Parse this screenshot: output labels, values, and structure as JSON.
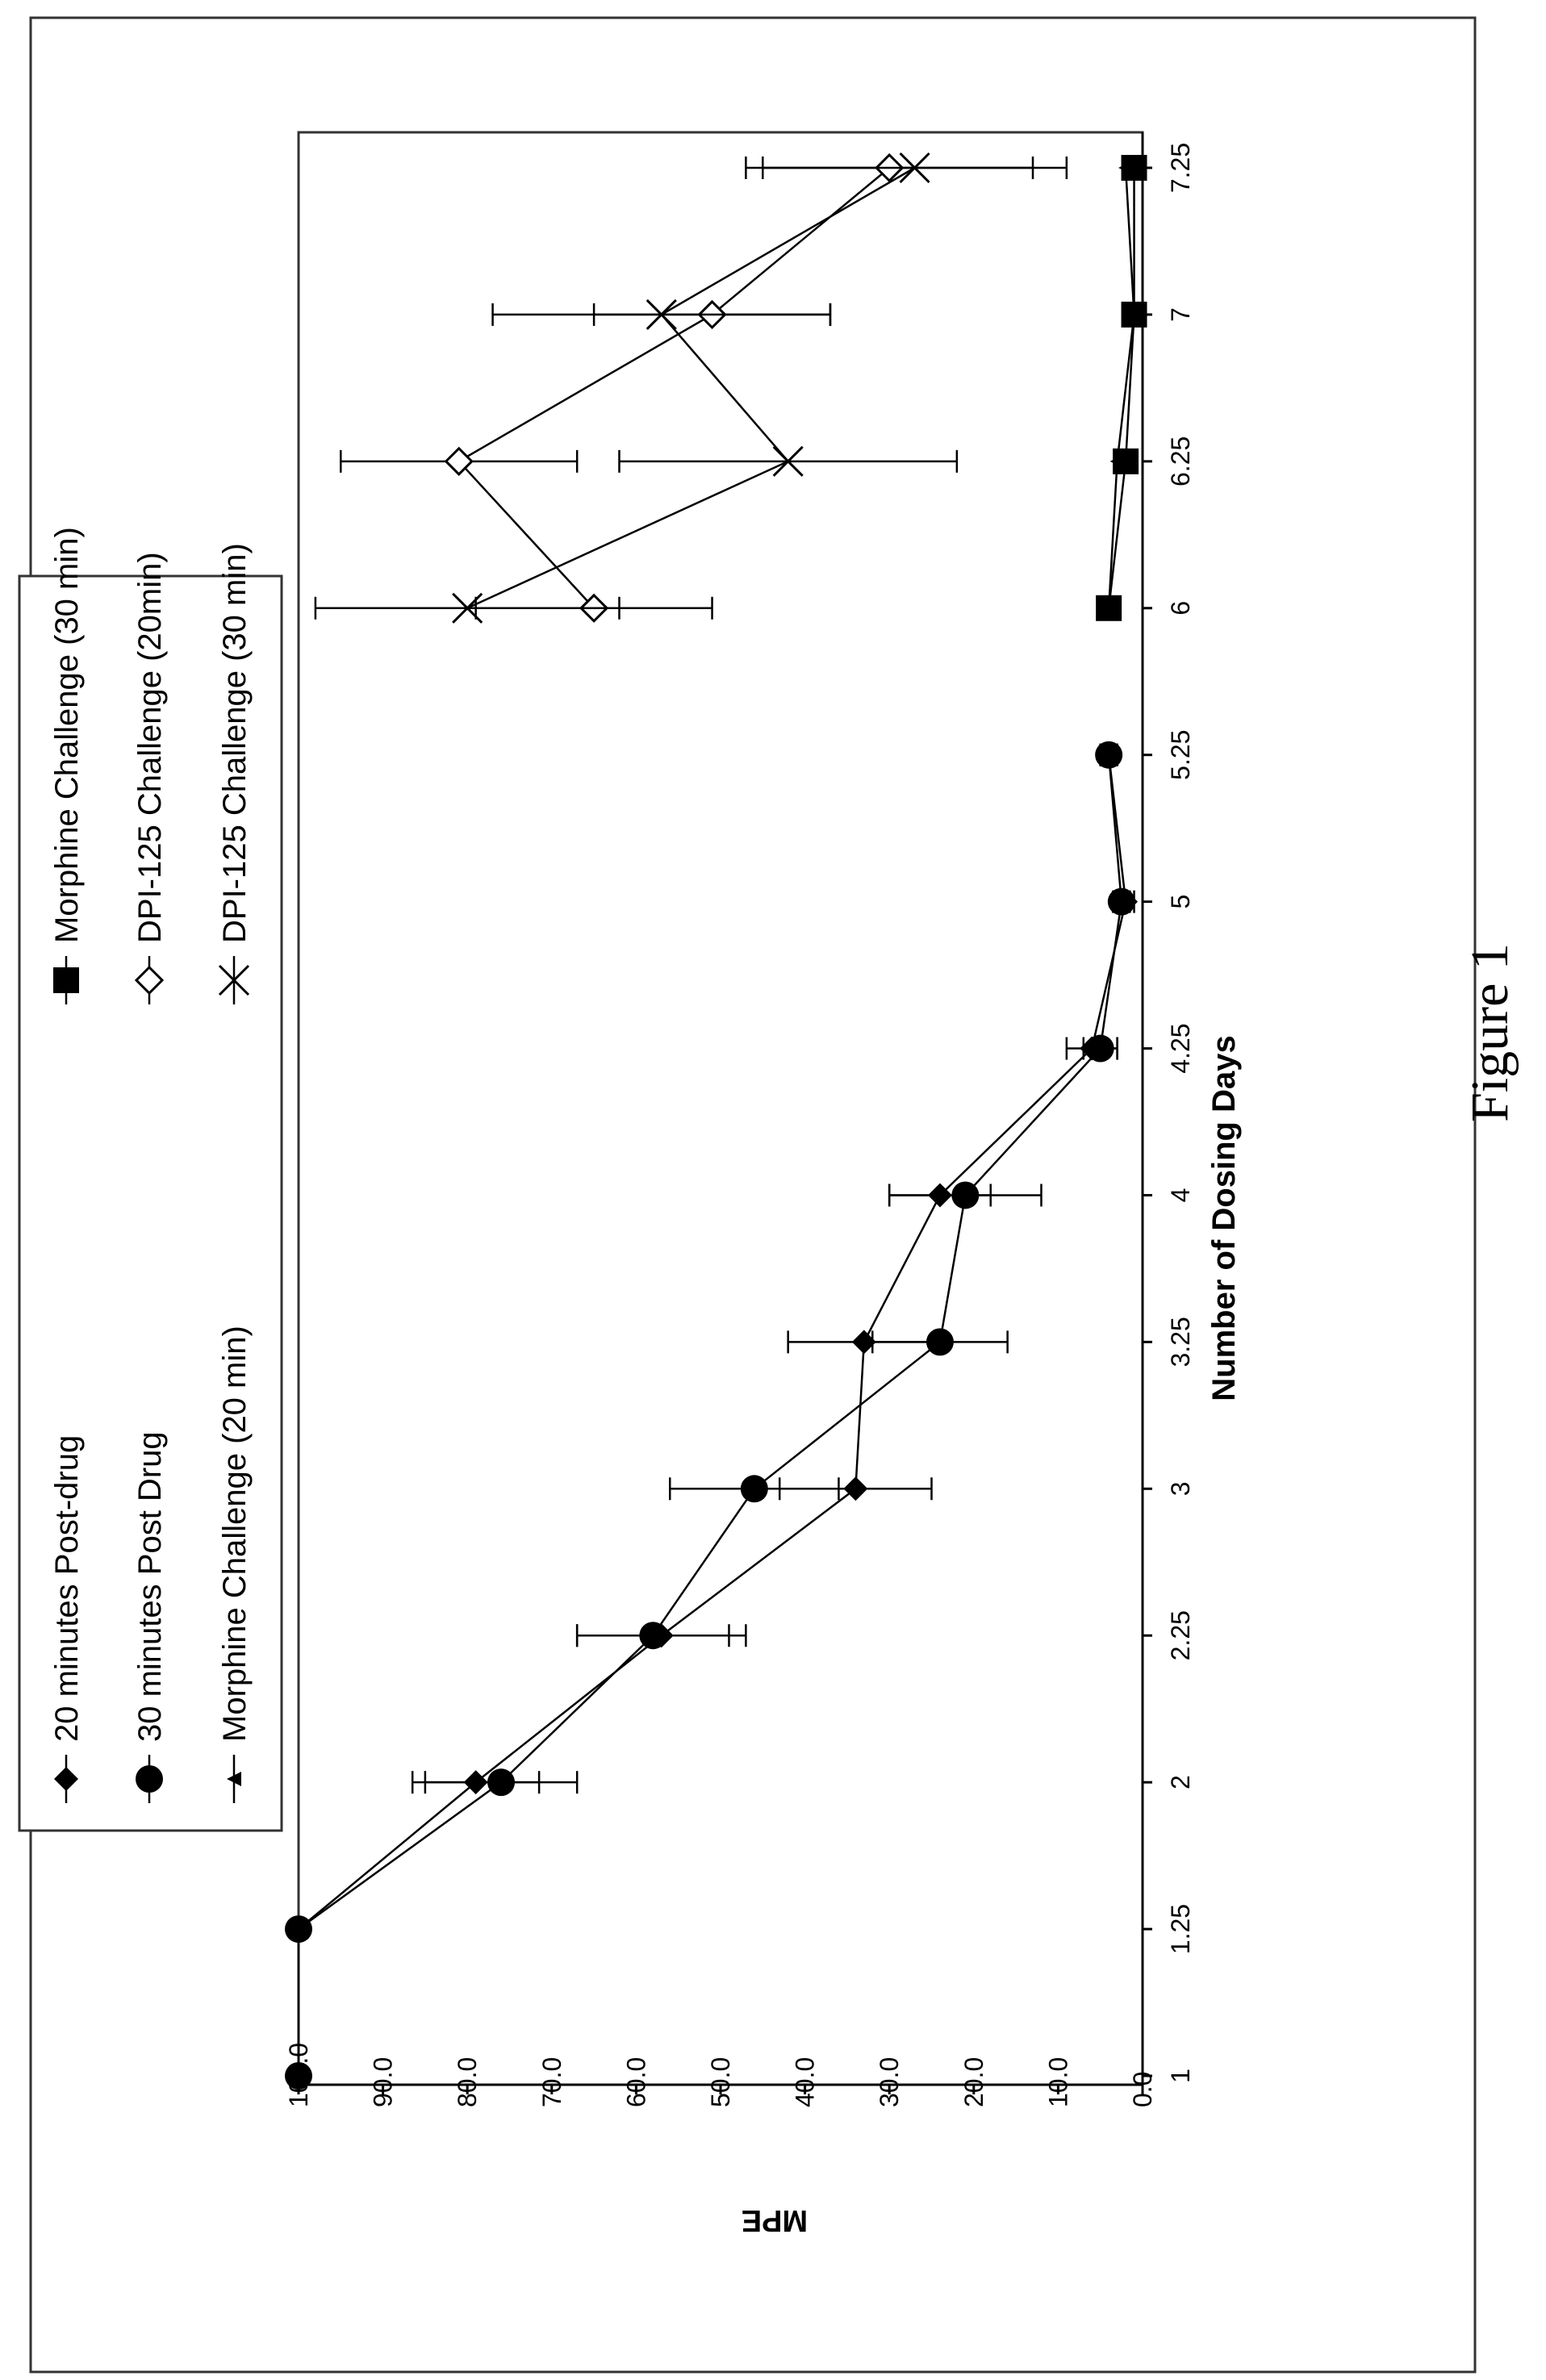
{
  "figure": {
    "caption": "Figure 1"
  },
  "chart_data": {
    "type": "line",
    "xlabel": "Number of Dosing Days",
    "ylabel": "MPE",
    "ylim": [
      0,
      100
    ],
    "y_ticks": [
      "0.0",
      "10.0",
      "20.0",
      "30.0",
      "40.0",
      "50.0",
      "60.0",
      "70.0",
      "80.0",
      "90.0",
      "100.0"
    ],
    "x_categories": [
      "1",
      "1.25",
      "2",
      "2.25",
      "3",
      "3.25",
      "4",
      "4.25",
      "5",
      "5.25",
      "6",
      "6.25",
      "7",
      "7.25"
    ],
    "grid": false,
    "legend_position": "top-left (rotated figure)",
    "orientation": "rotated 90 degrees counter-clockwise",
    "series": [
      {
        "name": "20 minutes Post-drug",
        "marker": "diamond-filled",
        "points": [
          {
            "x": "1",
            "y": 100.0
          },
          {
            "x": "1.25",
            "y": 100.0
          },
          {
            "x": "2",
            "y": 79.0,
            "err": 7.5
          },
          {
            "x": "2.25",
            "y": 57.0,
            "err": 10.0
          },
          {
            "x": "3",
            "y": 34.0,
            "err": 9.0
          },
          {
            "x": "3.25",
            "y": 33.0,
            "err": 9.0
          },
          {
            "x": "4",
            "y": 24.0,
            "err": 6.0
          },
          {
            "x": "4.25",
            "y": 6.0,
            "err": 3.0
          },
          {
            "x": "5",
            "y": 2.0,
            "err": 1.0
          },
          {
            "x": "5.25",
            "y": 4.0,
            "err": 1.0
          }
        ]
      },
      {
        "name": "30 minutes Post Drug",
        "marker": "circle-filled",
        "points": [
          {
            "x": "1",
            "y": 100.0
          },
          {
            "x": "1.25",
            "y": 100.0
          },
          {
            "x": "2",
            "y": 76.0,
            "err": 9.0
          },
          {
            "x": "2.25",
            "y": 58.0,
            "err": 9.0
          },
          {
            "x": "3",
            "y": 46.0,
            "err": 10.0
          },
          {
            "x": "3.25",
            "y": 24.0,
            "err": 8.0
          },
          {
            "x": "4",
            "y": 21.0,
            "err": 9.0
          },
          {
            "x": "4.25",
            "y": 5.0,
            "err": 2.0
          },
          {
            "x": "5",
            "y": 2.5,
            "err": 1.0
          },
          {
            "x": "5.25",
            "y": 4.0,
            "err": 1.0
          }
        ]
      },
      {
        "name": "Morphine Challenge (20 min)",
        "marker": "triangle-filled",
        "points": [
          {
            "x": "6",
            "y": 4.0
          },
          {
            "x": "6.25",
            "y": 3.0
          },
          {
            "x": "7",
            "y": 1.0
          },
          {
            "x": "7.25",
            "y": 2.0
          }
        ]
      },
      {
        "name": "Morphine Challenge (30 min)",
        "marker": "square-filled",
        "points": [
          {
            "x": "6",
            "y": 4.0
          },
          {
            "x": "6.25",
            "y": 2.0
          },
          {
            "x": "7",
            "y": 1.0
          },
          {
            "x": "7.25",
            "y": 1.0,
            "err": 1.0
          }
        ]
      },
      {
        "name": "DPI-125 Challenge (20min)",
        "marker": "diamond-open",
        "points": [
          {
            "x": "6",
            "y": 65.0,
            "err": 14.0
          },
          {
            "x": "6.25",
            "y": 81.0,
            "err": 14.0
          },
          {
            "x": "7",
            "y": 51.0,
            "err": 14.0
          },
          {
            "x": "7.25",
            "y": 30.0,
            "err": 17.0
          }
        ]
      },
      {
        "name": "DPI-125 Challenge (30 min)",
        "marker": "x",
        "points": [
          {
            "x": "6",
            "y": 80.0,
            "err": 18.0
          },
          {
            "x": "6.25",
            "y": 42.0,
            "err": 20.0
          },
          {
            "x": "7",
            "y": 57.0,
            "err": 20.0
          },
          {
            "x": "7.25",
            "y": 27.0,
            "err": 18.0
          }
        ]
      }
    ]
  }
}
